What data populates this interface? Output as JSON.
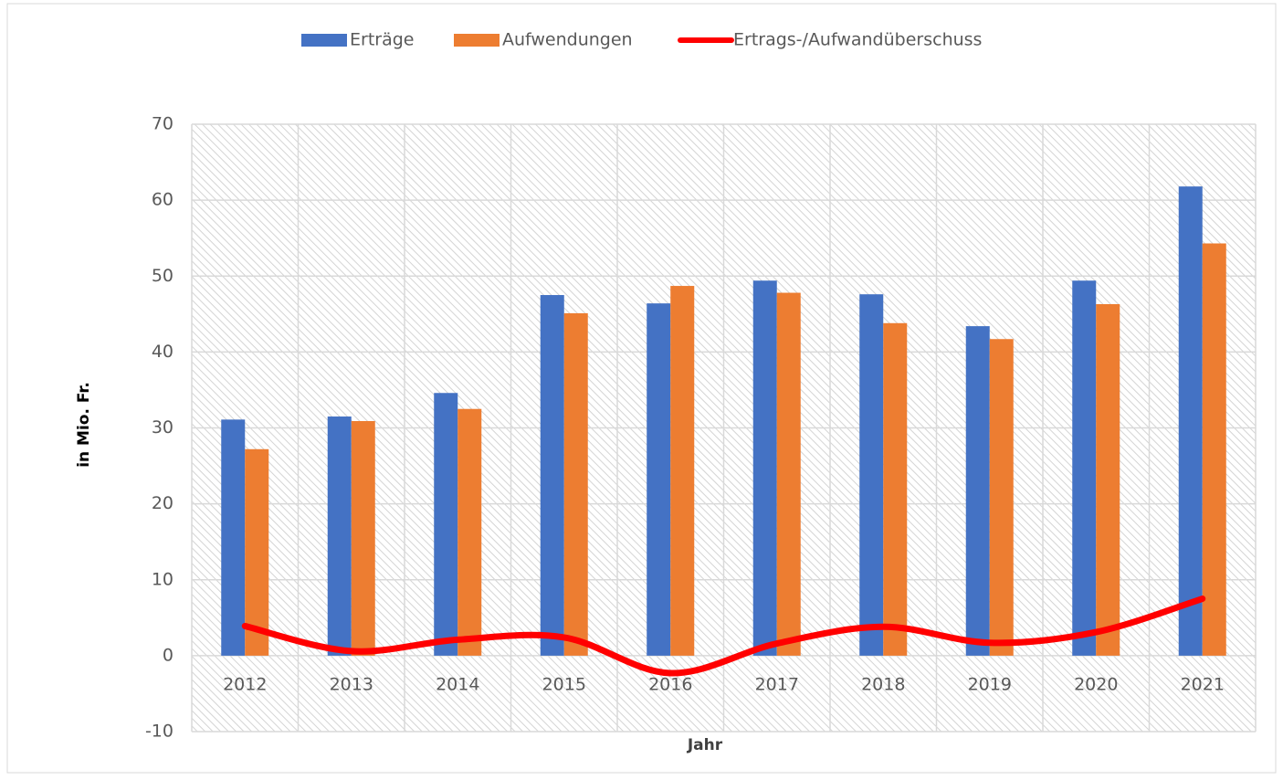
{
  "chart_data": {
    "type": "bar",
    "categories": [
      "2012",
      "2013",
      "2014",
      "2015",
      "2016",
      "2017",
      "2018",
      "2019",
      "2020",
      "2021"
    ],
    "series": [
      {
        "name": "Erträge",
        "color": "#4472c4",
        "type": "bar",
        "values": [
          31.1,
          31.5,
          34.6,
          47.5,
          46.4,
          49.4,
          47.6,
          43.4,
          49.4,
          61.8
        ]
      },
      {
        "name": "Aufwendungen",
        "color": "#ed7d31",
        "type": "bar",
        "values": [
          27.2,
          30.9,
          32.5,
          45.1,
          48.7,
          47.8,
          43.8,
          41.7,
          46.3,
          54.3
        ]
      },
      {
        "name": "Ertrags-/Aufwandüberschuss",
        "color": "#ff0000",
        "type": "line",
        "values": [
          3.9,
          0.6,
          2.1,
          2.4,
          -2.3,
          1.6,
          3.8,
          1.7,
          3.1,
          7.5
        ]
      }
    ],
    "y_label": "in Mio. Fr.",
    "x_label": "Jahr",
    "ylim": [
      -10,
      70
    ],
    "yticks": [
      -10,
      0,
      10,
      20,
      30,
      40,
      50,
      60,
      70
    ],
    "grid": true,
    "legend": "top"
  }
}
